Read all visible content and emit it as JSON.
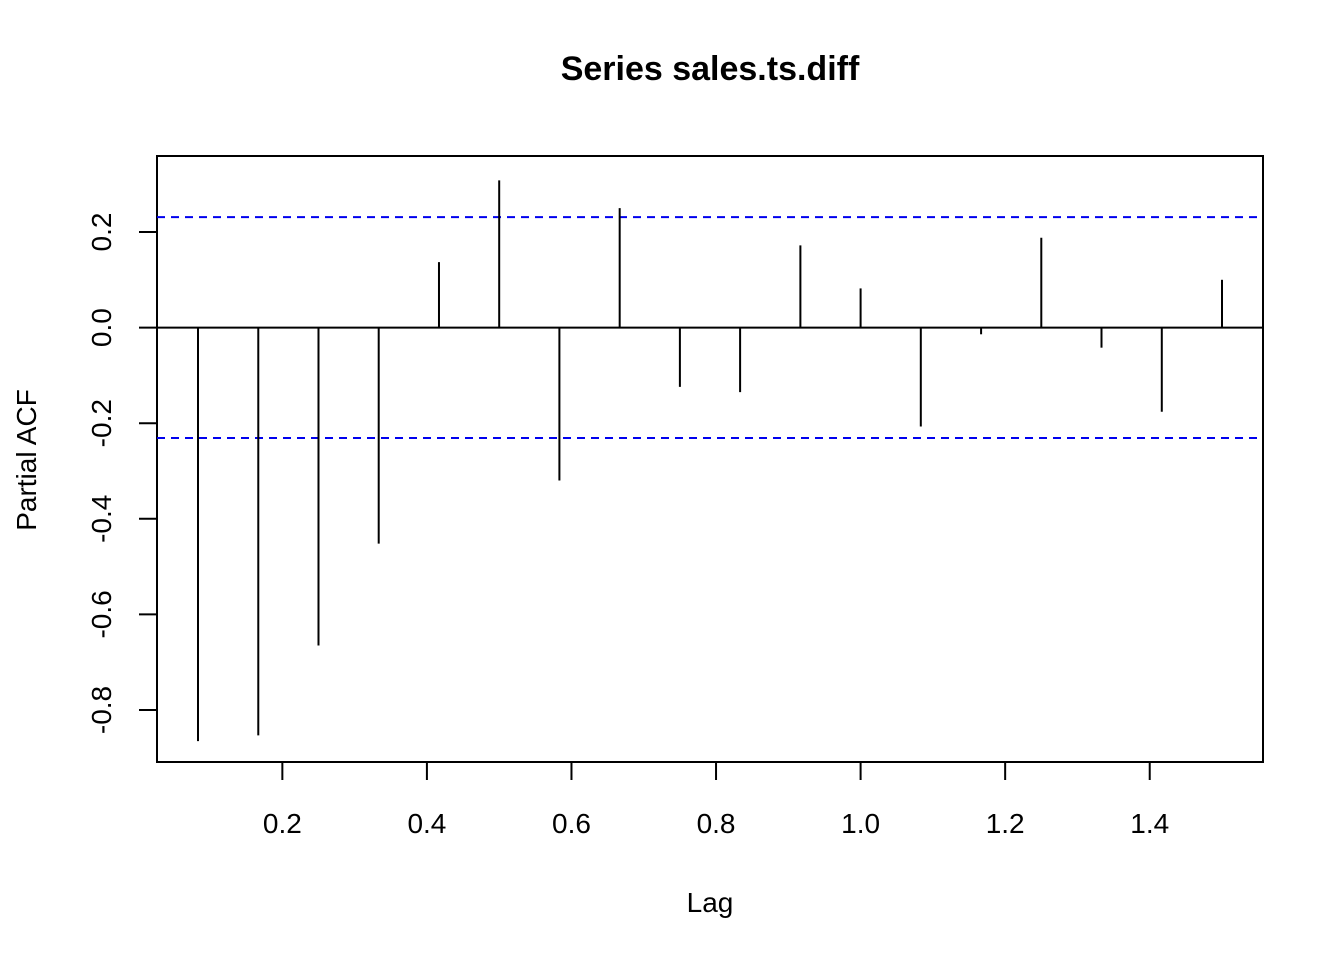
{
  "chart_data": {
    "type": "bar",
    "title": "Series  sales.ts.diff",
    "xlabel": "Lag",
    "ylabel": "Partial ACF",
    "xlim": [
      0.0833,
      1.5
    ],
    "ylim": [
      -0.87,
      0.31
    ],
    "x_ticks": [
      "0.2",
      "0.4",
      "0.6",
      "0.8",
      "1.0",
      "1.2",
      "1.4"
    ],
    "y_ticks": [
      "-0.8",
      "-0.6",
      "-0.4",
      "-0.2",
      "0.0",
      "0.2"
    ],
    "lags": [
      0.0833,
      0.1667,
      0.25,
      0.3333,
      0.4167,
      0.5,
      0.5833,
      0.6667,
      0.75,
      0.8333,
      0.9167,
      1.0,
      1.0833,
      1.1667,
      1.25,
      1.3333,
      1.4167,
      1.5
    ],
    "values": [
      -0.865,
      -0.853,
      -0.665,
      -0.452,
      0.137,
      0.308,
      -0.32,
      0.25,
      -0.124,
      -0.135,
      0.172,
      0.082,
      -0.207,
      -0.014,
      0.188,
      -0.042,
      -0.176,
      0.1
    ],
    "confidence_bound": 0.231,
    "colors": {
      "bars": "#000000",
      "confidence_lines": "#0000ee",
      "zero_line": "#000000"
    },
    "grid": false,
    "legend": "none"
  }
}
